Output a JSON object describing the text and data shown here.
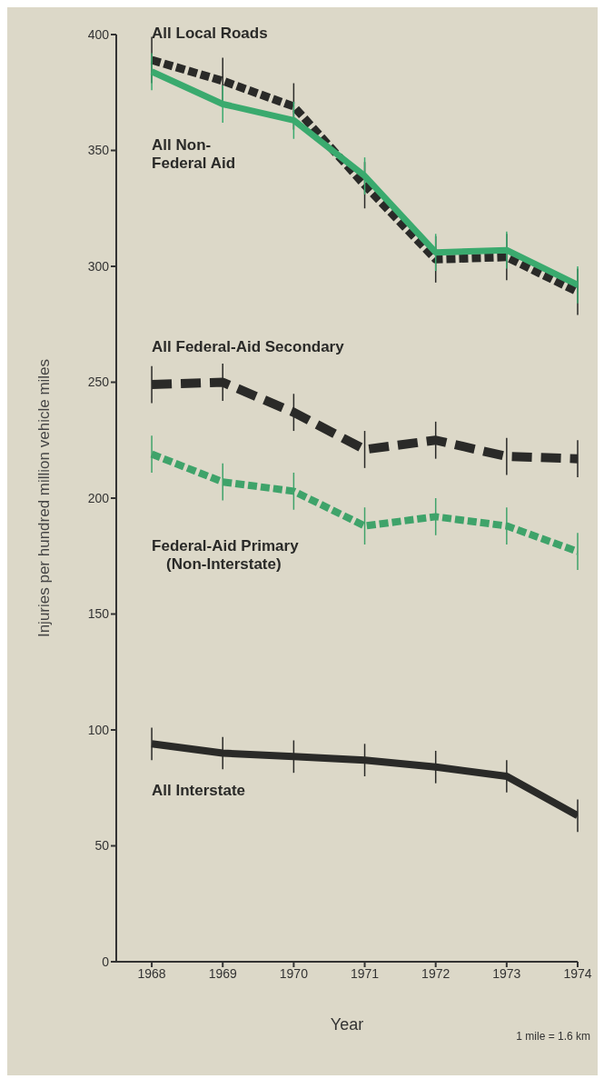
{
  "chart_data": {
    "type": "line",
    "xlabel": "Year",
    "ylabel": "Injuries per hundred million vehicle miles",
    "annotations": [
      "1 mile = 1.6 km"
    ],
    "x": [
      1968,
      1969,
      1970,
      1971,
      1972,
      1973,
      1974
    ],
    "series": [
      {
        "name": "All Local Roads",
        "color": "#2a2a28",
        "line_style": "dotted",
        "values": [
          389,
          380,
          369,
          335,
          303,
          304,
          289
        ],
        "errors": [
          10,
          10,
          10,
          10,
          10,
          10,
          10
        ]
      },
      {
        "name": "All Non-Federal Aid",
        "color": "#3aaa6e",
        "line_style": "solid",
        "values": [
          384,
          370,
          363,
          339,
          306,
          307,
          292
        ],
        "errors": [
          8,
          8,
          8,
          8,
          8,
          8,
          8
        ]
      },
      {
        "name": "All Federal-Aid Secondary",
        "color": "#2a2a28",
        "line_style": "dashed",
        "values": [
          249,
          250,
          237,
          221,
          225,
          218,
          217
        ],
        "errors": [
          8,
          8,
          8,
          8,
          8,
          8,
          8
        ]
      },
      {
        "name": "Federal-Aid Primary (Non-Interstate)",
        "color": "#3fa36a",
        "line_style": "dotted",
        "values": [
          219,
          207,
          203,
          188,
          192,
          188,
          177
        ],
        "errors": [
          8,
          8,
          8,
          8,
          8,
          8,
          8
        ]
      },
      {
        "name": "All Interstate",
        "color": "#2a2a28",
        "line_style": "solid",
        "values": [
          94,
          90,
          88.5,
          87,
          84,
          80,
          63
        ],
        "errors": [
          7,
          7,
          7,
          7,
          7,
          7,
          7
        ]
      }
    ],
    "xlim": [
      1967.5,
      1974
    ],
    "xticks": [
      1968,
      1969,
      1970,
      1971,
      1972,
      1973,
      1974
    ],
    "ylim": [
      0,
      400
    ],
    "yticks": [
      0,
      50,
      100,
      150,
      200,
      250,
      300,
      350,
      400
    ],
    "grid": false,
    "legend": false,
    "marker": "none"
  }
}
